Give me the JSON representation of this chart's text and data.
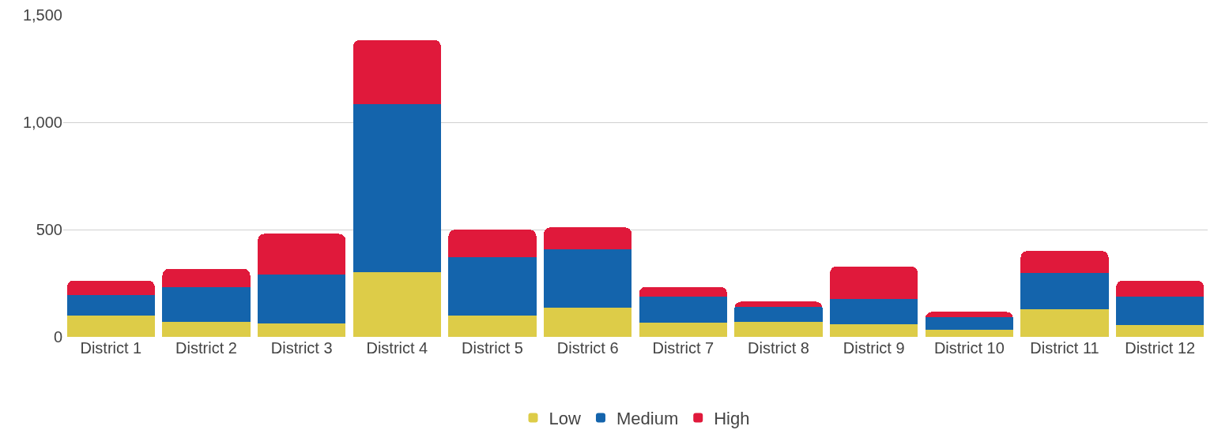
{
  "chart_data": {
    "type": "bar",
    "stacked": true,
    "categories": [
      "District 1",
      "District 2",
      "District 3",
      "District 4",
      "District 5",
      "District 6",
      "District 7",
      "District 8",
      "District 9",
      "District 10",
      "District 11",
      "District 12"
    ],
    "series": [
      {
        "name": "Low",
        "color": "#ddcc48",
        "values": [
          98,
          69,
          62,
          302,
          98,
          135,
          66,
          69,
          58,
          33,
          127,
          55
        ]
      },
      {
        "name": "Medium",
        "color": "#1464ac",
        "values": [
          98,
          164,
          229,
          783,
          273,
          273,
          123,
          69,
          117,
          58,
          171,
          134
        ]
      },
      {
        "name": "High",
        "color": "#e0193b",
        "values": [
          66,
          84,
          189,
          298,
          128,
          102,
          44,
          26,
          153,
          25,
          102,
          73
        ]
      }
    ],
    "ylim": [
      0,
      1500
    ],
    "yticks": [
      0,
      {
        "value": 500,
        "label": "500"
      },
      {
        "value": 1000,
        "label": "1,000"
      },
      {
        "value": 1500,
        "label": "1,500"
      }
    ],
    "grid": "y",
    "legend": "bottom"
  }
}
